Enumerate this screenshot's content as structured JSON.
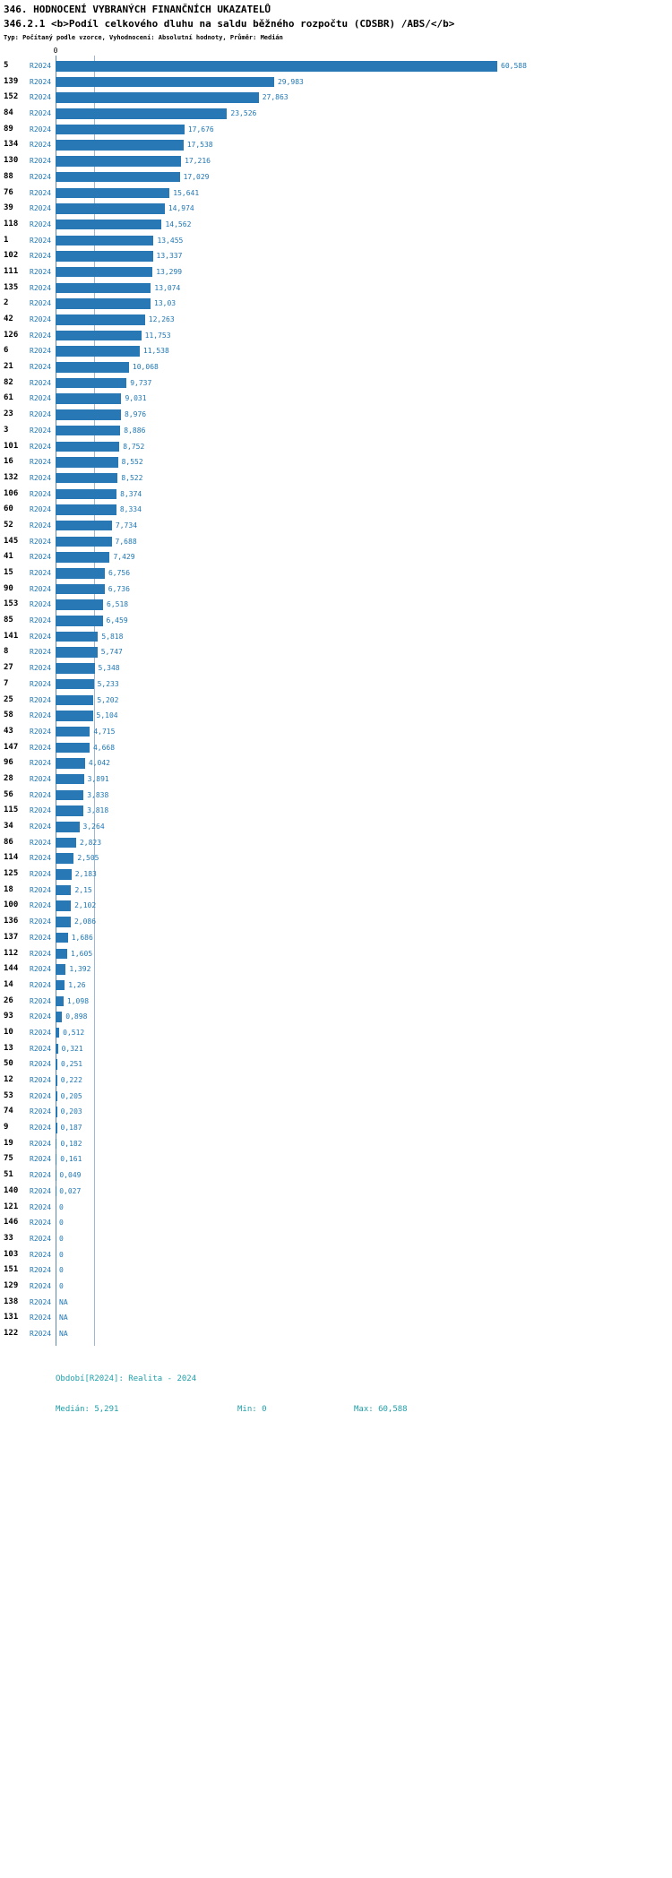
{
  "header": {
    "title": "346. HODNOCENÍ VYBRANÝCH FINANČNÍCH UKAZATELŮ",
    "subtitle": "346.2.1 <b>Podíl celkového dluhu na saldu běžného rozpočtu (CDSBR) /ABS/</b>",
    "meta": "Typ: Počítaný podle vzorce, Vyhodnocení: Absolutní hodnoty, Průměr: Medián"
  },
  "chart_data": {
    "type": "bar",
    "orientation": "horizontal",
    "title": "Podíl celkového dluhu na saldu běžného rozpočtu (CDSBR) /ABS/",
    "series_label": "R2024",
    "x_axis_ticks": [
      "0"
    ],
    "xlim": [
      0,
      60.588
    ],
    "median_value": 5.291,
    "min_value": 0,
    "max_value": 60.588,
    "grid": false,
    "legend": "none",
    "categories": [
      "5",
      "139",
      "152",
      "84",
      "89",
      "134",
      "130",
      "88",
      "76",
      "39",
      "118",
      "1",
      "102",
      "111",
      "135",
      "2",
      "42",
      "126",
      "6",
      "21",
      "82",
      "61",
      "23",
      "3",
      "101",
      "16",
      "132",
      "106",
      "60",
      "52",
      "145",
      "41",
      "15",
      "90",
      "153",
      "85",
      "141",
      "8",
      "27",
      "7",
      "25",
      "58",
      "43",
      "147",
      "96",
      "28",
      "56",
      "115",
      "34",
      "86",
      "114",
      "125",
      "18",
      "100",
      "136",
      "137",
      "112",
      "144",
      "14",
      "26",
      "93",
      "10",
      "13",
      "50",
      "12",
      "53",
      "74",
      "9",
      "19",
      "75",
      "51",
      "140",
      "121",
      "146",
      "33",
      "103",
      "151",
      "129",
      "138",
      "131",
      "122"
    ],
    "values": [
      60.588,
      29.983,
      27.863,
      23.526,
      17.676,
      17.538,
      17.216,
      17.029,
      15.641,
      14.974,
      14.562,
      13.455,
      13.337,
      13.299,
      13.074,
      13.03,
      12.263,
      11.753,
      11.538,
      10.068,
      9.737,
      9.031,
      8.976,
      8.886,
      8.752,
      8.552,
      8.522,
      8.374,
      8.334,
      7.734,
      7.688,
      7.429,
      6.756,
      6.736,
      6.518,
      6.459,
      5.818,
      5.747,
      5.348,
      5.233,
      5.202,
      5.104,
      4.715,
      4.668,
      4.042,
      3.891,
      3.838,
      3.818,
      3.264,
      2.823,
      2.505,
      2.183,
      2.15,
      2.102,
      2.086,
      1.686,
      1.605,
      1.392,
      1.26,
      1.098,
      0.898,
      0.512,
      0.321,
      0.251,
      0.222,
      0.205,
      0.203,
      0.187,
      0.182,
      0.161,
      0.049,
      0.027,
      0,
      0,
      0,
      0,
      0,
      0,
      null,
      null,
      null
    ],
    "value_labels": [
      "60,588",
      "29,983",
      "27,863",
      "23,526",
      "17,676",
      "17,538",
      "17,216",
      "17,029",
      "15,641",
      "14,974",
      "14,562",
      "13,455",
      "13,337",
      "13,299",
      "13,074",
      "13,03",
      "12,263",
      "11,753",
      "11,538",
      "10,068",
      "9,737",
      "9,031",
      "8,976",
      "8,886",
      "8,752",
      "8,552",
      "8,522",
      "8,374",
      "8,334",
      "7,734",
      "7,688",
      "7,429",
      "6,756",
      "6,736",
      "6,518",
      "6,459",
      "5,818",
      "5,747",
      "5,348",
      "5,233",
      "5,202",
      "5,104",
      "4,715",
      "4,668",
      "4,042",
      "3,891",
      "3,838",
      "3,818",
      "3,264",
      "2,823",
      "2,505",
      "2,183",
      "2,15",
      "2,102",
      "2,086",
      "1,686",
      "1,605",
      "1,392",
      "1,26",
      "1,098",
      "0,898",
      "0,512",
      "0,321",
      "0,251",
      "0,222",
      "0,205",
      "0,203",
      "0,187",
      "0,182",
      "0,161",
      "0,049",
      "0,027",
      "0",
      "0",
      "0",
      "0",
      "0",
      "0",
      "NA",
      "NA",
      "NA"
    ]
  },
  "footer": {
    "period": "Období[R2024]: Realita - 2024",
    "median": "Medián: 5,291",
    "min": "Min: 0",
    "max": "Max: 60,588"
  },
  "colors": {
    "bar": "#2878b5",
    "value_text": "#1f77b4",
    "series_text": "#1f77b4",
    "footer_text": "#1f9fa9",
    "axis_line": "#5d87ad",
    "median_line": "#9db8d2"
  }
}
